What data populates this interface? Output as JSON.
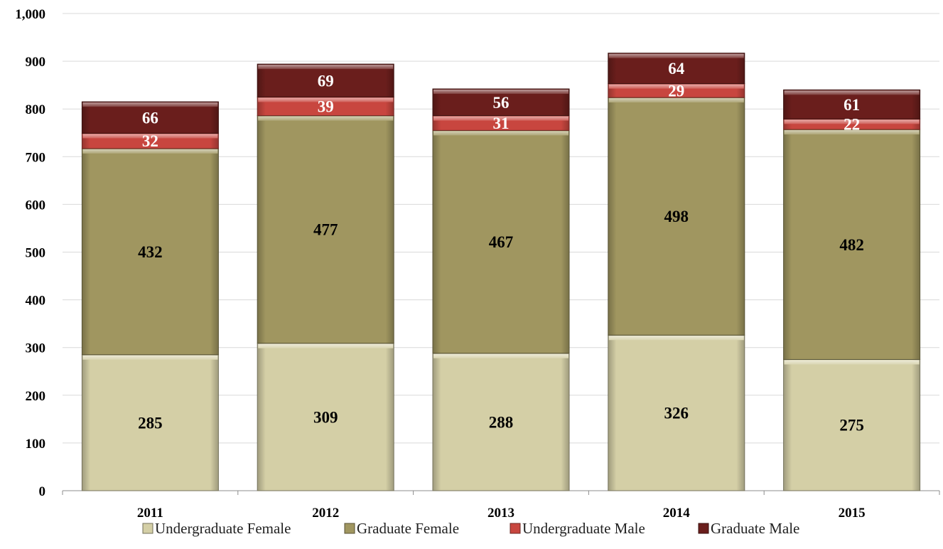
{
  "chart_data": {
    "type": "bar",
    "stacked": true,
    "categories": [
      "2011",
      "2012",
      "2013",
      "2014",
      "2015"
    ],
    "series": [
      {
        "name": "Undergraduate Female",
        "values": [
          285,
          309,
          288,
          326,
          275
        ],
        "color": "#d4cfa6",
        "label_color": "#000000"
      },
      {
        "name": "Graduate Female",
        "values": [
          432,
          477,
          467,
          498,
          482
        ],
        "color": "#a09660",
        "label_color": "#000000"
      },
      {
        "name": "Undergraduate Male",
        "values": [
          32,
          39,
          31,
          29,
          22
        ],
        "color": "#c8463f",
        "label_color": "#ffffff"
      },
      {
        "name": "Graduate Male",
        "values": [
          66,
          69,
          56,
          64,
          61
        ],
        "color": "#6a1e1c",
        "label_color": "#ffffff"
      }
    ],
    "ylim": [
      0,
      1000
    ],
    "yticks": [
      0,
      100,
      200,
      300,
      400,
      500,
      600,
      700,
      800,
      900,
      1000
    ],
    "ytick_labels": [
      "0",
      "100",
      "200",
      "300",
      "400",
      "500",
      "600",
      "700",
      "800",
      "900",
      "1,000"
    ],
    "title": "",
    "xlabel": "",
    "ylabel": "",
    "grid": true,
    "legend_position": "bottom"
  }
}
